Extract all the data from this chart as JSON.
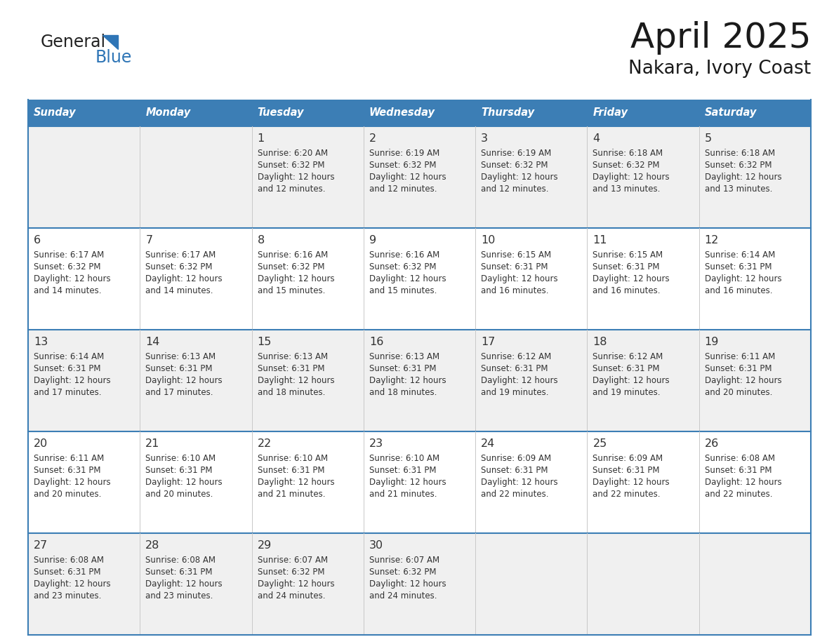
{
  "title": "April 2025",
  "subtitle": "Nakara, Ivory Coast",
  "header_bg": "#3c7eb5",
  "header_text_color": "#ffffff",
  "cell_bg_even": "#f0f0f0",
  "cell_bg_odd": "#ffffff",
  "border_color": "#3c7eb5",
  "text_color": "#333333",
  "logo_general_color": "#222222",
  "logo_blue_color": "#2e75b6",
  "logo_triangle_color": "#2e75b6",
  "days_of_week": [
    "Sunday",
    "Monday",
    "Tuesday",
    "Wednesday",
    "Thursday",
    "Friday",
    "Saturday"
  ],
  "weeks": [
    [
      {
        "day": "",
        "sunrise": "",
        "sunset": "",
        "daylight1": "",
        "daylight2": ""
      },
      {
        "day": "",
        "sunrise": "",
        "sunset": "",
        "daylight1": "",
        "daylight2": ""
      },
      {
        "day": "1",
        "sunrise": "Sunrise: 6:20 AM",
        "sunset": "Sunset: 6:32 PM",
        "daylight1": "Daylight: 12 hours",
        "daylight2": "and 12 minutes."
      },
      {
        "day": "2",
        "sunrise": "Sunrise: 6:19 AM",
        "sunset": "Sunset: 6:32 PM",
        "daylight1": "Daylight: 12 hours",
        "daylight2": "and 12 minutes."
      },
      {
        "day": "3",
        "sunrise": "Sunrise: 6:19 AM",
        "sunset": "Sunset: 6:32 PM",
        "daylight1": "Daylight: 12 hours",
        "daylight2": "and 12 minutes."
      },
      {
        "day": "4",
        "sunrise": "Sunrise: 6:18 AM",
        "sunset": "Sunset: 6:32 PM",
        "daylight1": "Daylight: 12 hours",
        "daylight2": "and 13 minutes."
      },
      {
        "day": "5",
        "sunrise": "Sunrise: 6:18 AM",
        "sunset": "Sunset: 6:32 PM",
        "daylight1": "Daylight: 12 hours",
        "daylight2": "and 13 minutes."
      }
    ],
    [
      {
        "day": "6",
        "sunrise": "Sunrise: 6:17 AM",
        "sunset": "Sunset: 6:32 PM",
        "daylight1": "Daylight: 12 hours",
        "daylight2": "and 14 minutes."
      },
      {
        "day": "7",
        "sunrise": "Sunrise: 6:17 AM",
        "sunset": "Sunset: 6:32 PM",
        "daylight1": "Daylight: 12 hours",
        "daylight2": "and 14 minutes."
      },
      {
        "day": "8",
        "sunrise": "Sunrise: 6:16 AM",
        "sunset": "Sunset: 6:32 PM",
        "daylight1": "Daylight: 12 hours",
        "daylight2": "and 15 minutes."
      },
      {
        "day": "9",
        "sunrise": "Sunrise: 6:16 AM",
        "sunset": "Sunset: 6:32 PM",
        "daylight1": "Daylight: 12 hours",
        "daylight2": "and 15 minutes."
      },
      {
        "day": "10",
        "sunrise": "Sunrise: 6:15 AM",
        "sunset": "Sunset: 6:31 PM",
        "daylight1": "Daylight: 12 hours",
        "daylight2": "and 16 minutes."
      },
      {
        "day": "11",
        "sunrise": "Sunrise: 6:15 AM",
        "sunset": "Sunset: 6:31 PM",
        "daylight1": "Daylight: 12 hours",
        "daylight2": "and 16 minutes."
      },
      {
        "day": "12",
        "sunrise": "Sunrise: 6:14 AM",
        "sunset": "Sunset: 6:31 PM",
        "daylight1": "Daylight: 12 hours",
        "daylight2": "and 16 minutes."
      }
    ],
    [
      {
        "day": "13",
        "sunrise": "Sunrise: 6:14 AM",
        "sunset": "Sunset: 6:31 PM",
        "daylight1": "Daylight: 12 hours",
        "daylight2": "and 17 minutes."
      },
      {
        "day": "14",
        "sunrise": "Sunrise: 6:13 AM",
        "sunset": "Sunset: 6:31 PM",
        "daylight1": "Daylight: 12 hours",
        "daylight2": "and 17 minutes."
      },
      {
        "day": "15",
        "sunrise": "Sunrise: 6:13 AM",
        "sunset": "Sunset: 6:31 PM",
        "daylight1": "Daylight: 12 hours",
        "daylight2": "and 18 minutes."
      },
      {
        "day": "16",
        "sunrise": "Sunrise: 6:13 AM",
        "sunset": "Sunset: 6:31 PM",
        "daylight1": "Daylight: 12 hours",
        "daylight2": "and 18 minutes."
      },
      {
        "day": "17",
        "sunrise": "Sunrise: 6:12 AM",
        "sunset": "Sunset: 6:31 PM",
        "daylight1": "Daylight: 12 hours",
        "daylight2": "and 19 minutes."
      },
      {
        "day": "18",
        "sunrise": "Sunrise: 6:12 AM",
        "sunset": "Sunset: 6:31 PM",
        "daylight1": "Daylight: 12 hours",
        "daylight2": "and 19 minutes."
      },
      {
        "day": "19",
        "sunrise": "Sunrise: 6:11 AM",
        "sunset": "Sunset: 6:31 PM",
        "daylight1": "Daylight: 12 hours",
        "daylight2": "and 20 minutes."
      }
    ],
    [
      {
        "day": "20",
        "sunrise": "Sunrise: 6:11 AM",
        "sunset": "Sunset: 6:31 PM",
        "daylight1": "Daylight: 12 hours",
        "daylight2": "and 20 minutes."
      },
      {
        "day": "21",
        "sunrise": "Sunrise: 6:10 AM",
        "sunset": "Sunset: 6:31 PM",
        "daylight1": "Daylight: 12 hours",
        "daylight2": "and 20 minutes."
      },
      {
        "day": "22",
        "sunrise": "Sunrise: 6:10 AM",
        "sunset": "Sunset: 6:31 PM",
        "daylight1": "Daylight: 12 hours",
        "daylight2": "and 21 minutes."
      },
      {
        "day": "23",
        "sunrise": "Sunrise: 6:10 AM",
        "sunset": "Sunset: 6:31 PM",
        "daylight1": "Daylight: 12 hours",
        "daylight2": "and 21 minutes."
      },
      {
        "day": "24",
        "sunrise": "Sunrise: 6:09 AM",
        "sunset": "Sunset: 6:31 PM",
        "daylight1": "Daylight: 12 hours",
        "daylight2": "and 22 minutes."
      },
      {
        "day": "25",
        "sunrise": "Sunrise: 6:09 AM",
        "sunset": "Sunset: 6:31 PM",
        "daylight1": "Daylight: 12 hours",
        "daylight2": "and 22 minutes."
      },
      {
        "day": "26",
        "sunrise": "Sunrise: 6:08 AM",
        "sunset": "Sunset: 6:31 PM",
        "daylight1": "Daylight: 12 hours",
        "daylight2": "and 22 minutes."
      }
    ],
    [
      {
        "day": "27",
        "sunrise": "Sunrise: 6:08 AM",
        "sunset": "Sunset: 6:31 PM",
        "daylight1": "Daylight: 12 hours",
        "daylight2": "and 23 minutes."
      },
      {
        "day": "28",
        "sunrise": "Sunrise: 6:08 AM",
        "sunset": "Sunset: 6:31 PM",
        "daylight1": "Daylight: 12 hours",
        "daylight2": "and 23 minutes."
      },
      {
        "day": "29",
        "sunrise": "Sunrise: 6:07 AM",
        "sunset": "Sunset: 6:32 PM",
        "daylight1": "Daylight: 12 hours",
        "daylight2": "and 24 minutes."
      },
      {
        "day": "30",
        "sunrise": "Sunrise: 6:07 AM",
        "sunset": "Sunset: 6:32 PM",
        "daylight1": "Daylight: 12 hours",
        "daylight2": "and 24 minutes."
      },
      {
        "day": "",
        "sunrise": "",
        "sunset": "",
        "daylight1": "",
        "daylight2": ""
      },
      {
        "day": "",
        "sunrise": "",
        "sunset": "",
        "daylight1": "",
        "daylight2": ""
      },
      {
        "day": "",
        "sunrise": "",
        "sunset": "",
        "daylight1": "",
        "daylight2": ""
      }
    ]
  ]
}
